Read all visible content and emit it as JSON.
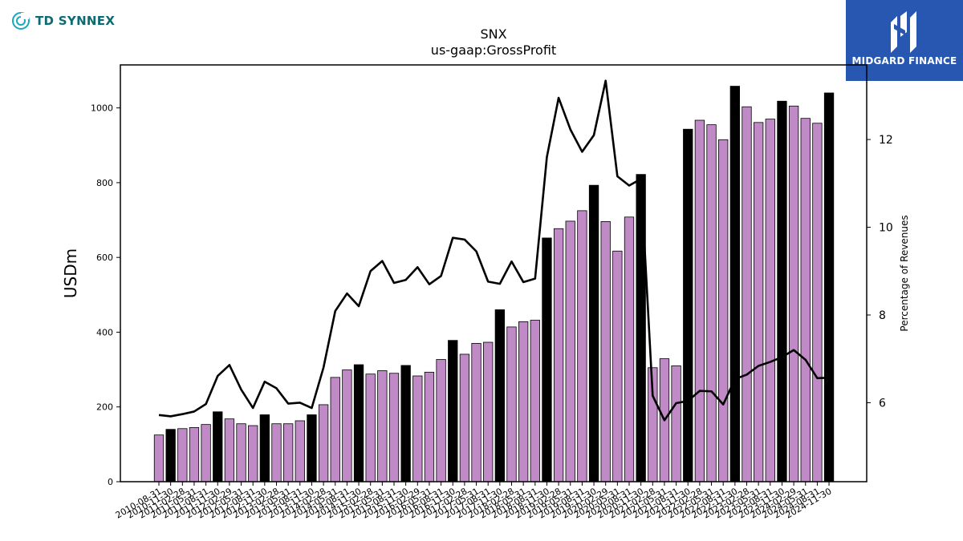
{
  "brand": {
    "left_logo_text": "TD SYNNEX",
    "right_logo_text": "MIDGARD FINANCE",
    "left_logo_color": "#0c6a73",
    "right_logo_bg": "#2757b0"
  },
  "chart_data": {
    "type": "bar",
    "title": "SNX",
    "subtitle": "us-gaap:GrossProfit",
    "ylabel": "USDm",
    "y2label": "Percentage of Revenues",
    "ylim": [
      0,
      1115
    ],
    "y2lim": [
      4.2,
      13.7
    ],
    "yticks": [
      0,
      200,
      400,
      600,
      800,
      1000
    ],
    "y2ticks": [
      6,
      8,
      10,
      12
    ],
    "colors": {
      "quarter_bar": "#c08ac7",
      "fiscal_year_bar": "#000000",
      "line": "#000000"
    },
    "categories": [
      "2010-08-31",
      "2010-11-30",
      "2011-02-28",
      "2011-05-31",
      "2011-08-31",
      "2011-11-30",
      "2012-02-29",
      "2012-05-31",
      "2012-08-31",
      "2012-11-30",
      "2013-02-28",
      "2013-05-31",
      "2013-08-31",
      "2013-11-30",
      "2014-02-28",
      "2014-05-31",
      "2014-08-31",
      "2014-11-30",
      "2015-02-28",
      "2015-05-31",
      "2015-08-31",
      "2015-11-30",
      "2016-02-29",
      "2016-05-31",
      "2016-08-31",
      "2016-11-30",
      "2017-02-28",
      "2017-05-31",
      "2017-08-31",
      "2017-11-30",
      "2018-02-28",
      "2018-05-31",
      "2018-08-31",
      "2018-11-30",
      "2019-02-28",
      "2019-05-31",
      "2019-08-31",
      "2019-11-30",
      "2020-02-29",
      "2020-05-31",
      "2020-08-31",
      "2020-11-30",
      "2021-02-28",
      "2021-05-31",
      "2021-08-31",
      "2021-11-30",
      "2022-02-28",
      "2022-05-31",
      "2022-08-31",
      "2022-11-30",
      "2023-02-28",
      "2023-05-31",
      "2023-08-31",
      "2023-11-30",
      "2024-02-29",
      "2024-05-31",
      "2024-08-31",
      "2024-11-30"
    ],
    "series": [
      {
        "kind": "bar",
        "values": [
          125,
          140,
          142,
          145,
          153,
          187,
          168,
          155,
          150,
          179,
          155,
          155,
          163,
          179,
          206,
          279,
          299,
          313,
          288,
          297,
          290,
          311,
          283,
          293,
          327,
          378,
          341,
          370,
          373,
          460,
          414,
          428,
          432,
          652,
          677,
          697,
          725,
          793,
          696,
          617,
          708,
          822,
          305,
          329,
          310,
          943,
          967,
          955,
          915,
          1058,
          1003,
          961,
          970,
          1018,
          1005,
          972,
          959,
          1040
        ],
        "fiscal_year_end": [
          false,
          true,
          false,
          false,
          false,
          true,
          false,
          false,
          false,
          true,
          false,
          false,
          false,
          true,
          false,
          false,
          false,
          true,
          false,
          false,
          false,
          true,
          false,
          false,
          false,
          true,
          false,
          false,
          false,
          true,
          false,
          false,
          false,
          true,
          false,
          false,
          false,
          true,
          false,
          false,
          false,
          true,
          false,
          false,
          false,
          true,
          false,
          false,
          false,
          true,
          false,
          false,
          false,
          true,
          false,
          false,
          false,
          true
        ]
      },
      {
        "kind": "line",
        "axis": "right",
        "values": [
          5.72,
          5.69,
          5.74,
          5.8,
          5.97,
          6.61,
          6.86,
          6.3,
          5.88,
          6.48,
          6.33,
          5.98,
          6.0,
          5.88,
          6.8,
          8.09,
          8.49,
          8.2,
          9.0,
          9.23,
          8.73,
          8.8,
          9.09,
          8.7,
          8.89,
          9.76,
          9.72,
          9.45,
          8.76,
          8.71,
          9.22,
          8.75,
          8.83,
          11.6,
          12.95,
          12.23,
          11.72,
          12.1,
          13.34,
          11.16,
          10.95,
          11.1,
          6.16,
          5.6,
          5.99,
          6.04,
          6.27,
          6.26,
          5.96,
          6.54,
          6.64,
          6.84,
          6.93,
          7.04,
          7.2,
          6.98,
          6.56,
          6.57
        ]
      }
    ]
  }
}
